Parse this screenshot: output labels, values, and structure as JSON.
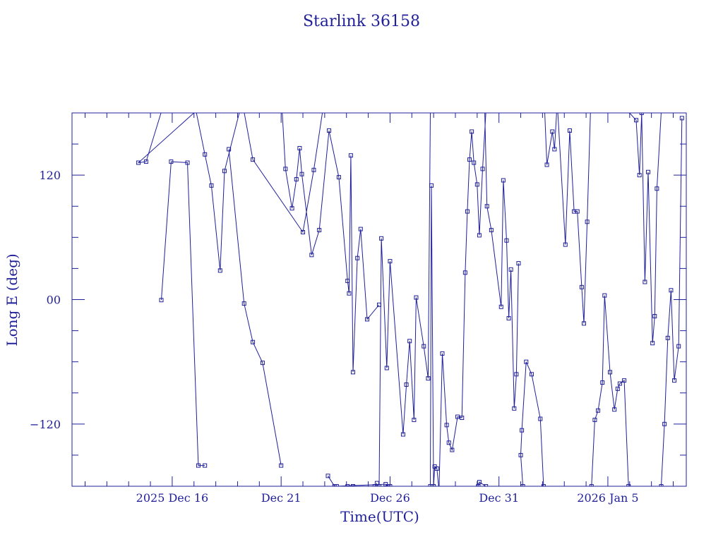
{
  "chart_data": {
    "type": "scatter",
    "title": "Starlink 36158",
    "xlabel": "Time(UTC)",
    "ylabel": "Long E (deg)",
    "xlim": [
      -4.6,
      23.6
    ],
    "ylim": [
      -180,
      180
    ],
    "x_unit": "days relative to 2025 Dec 16 00:00 UTC",
    "xticks": [
      {
        "pos": 0,
        "label": "2025 Dec 16"
      },
      {
        "pos": 5,
        "label": "Dec 21"
      },
      {
        "pos": 10,
        "label": "Dec 26"
      },
      {
        "pos": 15,
        "label": "Dec 31"
      },
      {
        "pos": 20,
        "label": "2026 Jan  5"
      }
    ],
    "yticks": [
      {
        "pos": 120,
        "label": "120"
      },
      {
        "pos": 0,
        "label": "00"
      },
      {
        "pos": -120,
        "label": "−120"
      }
    ],
    "grid": false,
    "line_color": "#1f1f9a",
    "series": [
      {
        "values": [
          [
            -0.5,
            -0.5
          ],
          [
            -0.05,
            133
          ],
          [
            0.7,
            132
          ],
          [
            1.2,
            -160
          ],
          [
            1.5,
            -160
          ]
        ]
      },
      {
        "values": [
          [
            2.6,
            145
          ],
          [
            3.3,
            -3.8
          ],
          [
            3.7,
            -41
          ],
          [
            4.15,
            -61
          ],
          [
            5.0,
            -160
          ]
        ]
      },
      {
        "values": [
          [
            -0.5,
            181
          ],
          [
            -1.2,
            133
          ],
          [
            -1.55,
            132
          ],
          [
            1.05,
            181
          ]
        ]
      },
      {
        "values": [
          [
            3.3,
            181
          ],
          [
            3.7,
            135
          ],
          [
            6.0,
            65
          ],
          [
            6.5,
            125
          ],
          [
            6.9,
            181
          ]
        ]
      },
      {
        "values": [
          [
            1.1,
            181
          ],
          [
            1.5,
            140
          ],
          [
            1.8,
            110
          ],
          [
            2.2,
            28
          ],
          [
            2.4,
            124
          ],
          [
            3.1,
            182
          ]
        ]
      },
      {
        "values": [
          [
            5.05,
            181
          ],
          [
            5.2,
            126
          ],
          [
            5.5,
            88
          ],
          [
            5.7,
            116
          ],
          [
            5.85,
            146
          ],
          [
            5.95,
            121
          ],
          [
            6.4,
            43
          ],
          [
            6.75,
            67
          ],
          [
            7.2,
            163
          ],
          [
            7.65,
            118
          ],
          [
            8.05,
            18
          ],
          [
            8.12,
            6
          ],
          [
            8.2,
            139
          ],
          [
            8.3,
            -70
          ],
          [
            8.5,
            40
          ],
          [
            8.65,
            68
          ],
          [
            8.95,
            -19
          ],
          [
            9.5,
            -5
          ]
        ]
      },
      {
        "values": [
          [
            7.15,
            -170
          ],
          [
            7.45,
            -180
          ],
          [
            7.55,
            -180
          ],
          [
            9.8,
            -178
          ],
          [
            9.9,
            -180
          ],
          [
            10.0,
            -180
          ],
          [
            9.3,
            -180
          ],
          [
            9.4,
            -177
          ]
        ]
      },
      {
        "values": [
          [
            8.05,
            -180
          ],
          [
            8.3,
            -180
          ],
          [
            9.5,
            -180
          ],
          [
            9.6,
            59
          ],
          [
            9.85,
            -66
          ],
          [
            10.0,
            37
          ],
          [
            10.6,
            -130
          ],
          [
            10.75,
            -82
          ],
          [
            10.9,
            -40
          ],
          [
            11.1,
            -116
          ],
          [
            11.2,
            2
          ],
          [
            11.55,
            -45
          ],
          [
            11.75,
            -76
          ],
          [
            11.85,
            181
          ]
        ]
      },
      {
        "values": [
          [
            11.85,
            -180
          ],
          [
            11.9,
            110
          ],
          [
            12.0,
            -180
          ],
          [
            12.05,
            -161
          ],
          [
            12.15,
            -163
          ],
          [
            12.25,
            -184
          ],
          [
            12.4,
            -52
          ],
          [
            12.6,
            -121
          ],
          [
            12.7,
            -138
          ],
          [
            12.85,
            -145
          ],
          [
            13.1,
            -113
          ],
          [
            13.3,
            -114
          ],
          [
            13.45,
            26
          ],
          [
            13.55,
            85
          ],
          [
            13.65,
            135
          ],
          [
            13.75,
            162
          ],
          [
            13.85,
            132
          ],
          [
            14.0,
            111
          ],
          [
            14.1,
            62
          ],
          [
            14.25,
            126
          ],
          [
            14.4,
            181
          ]
        ]
      },
      {
        "values": [
          [
            14.4,
            -180
          ],
          [
            14.1,
            -176
          ],
          [
            14.05,
            -180
          ]
        ]
      },
      {
        "values": [
          [
            14.35,
            181
          ],
          [
            14.45,
            90
          ],
          [
            14.65,
            67
          ],
          [
            15.1,
            -7
          ],
          [
            15.2,
            115
          ],
          [
            15.35,
            57
          ],
          [
            15.45,
            -18
          ],
          [
            15.55,
            29
          ],
          [
            15.7,
            -105
          ],
          [
            15.8,
            -72
          ],
          [
            15.9,
            35
          ]
        ]
      },
      {
        "values": [
          [
            16.1,
            -180
          ],
          [
            16.0,
            -150
          ],
          [
            16.05,
            -126
          ],
          [
            16.25,
            -60
          ],
          [
            16.5,
            -72
          ],
          [
            16.9,
            -115
          ],
          [
            17.05,
            -180
          ]
        ]
      },
      {
        "values": [
          [
            17.1,
            181
          ],
          [
            17.2,
            130
          ],
          [
            17.45,
            162
          ],
          [
            17.55,
            145
          ],
          [
            17.65,
            181
          ]
        ]
      },
      {
        "values": [
          [
            17.7,
            181
          ],
          [
            18.05,
            53
          ],
          [
            18.25,
            163
          ],
          [
            18.45,
            85
          ],
          [
            18.6,
            85
          ],
          [
            18.8,
            12
          ],
          [
            18.9,
            -23
          ],
          [
            19.05,
            75
          ],
          [
            19.2,
            181
          ]
        ]
      },
      {
        "values": [
          [
            19.25,
            -180
          ],
          [
            19.4,
            -116
          ],
          [
            19.55,
            -107
          ],
          [
            19.75,
            -80
          ],
          [
            19.85,
            4
          ],
          [
            20.1,
            -70
          ],
          [
            20.3,
            -106
          ],
          [
            20.45,
            -86
          ],
          [
            20.55,
            -81
          ],
          [
            20.75,
            -78
          ],
          [
            20.95,
            -180
          ]
        ]
      },
      {
        "values": [
          [
            20.95,
            181
          ],
          [
            21.3,
            173
          ],
          [
            21.45,
            120
          ],
          [
            21.55,
            180
          ],
          [
            21.7,
            17
          ],
          [
            21.85,
            123
          ],
          [
            22.05,
            -42
          ],
          [
            22.15,
            -16
          ],
          [
            22.25,
            107
          ],
          [
            22.45,
            181
          ]
        ]
      },
      {
        "values": [
          [
            22.45,
            -180
          ],
          [
            22.6,
            -120
          ],
          [
            22.75,
            -37
          ],
          [
            22.9,
            9
          ],
          [
            23.05,
            -78
          ],
          [
            23.25,
            -45
          ],
          [
            23.4,
            175
          ]
        ]
      }
    ]
  }
}
